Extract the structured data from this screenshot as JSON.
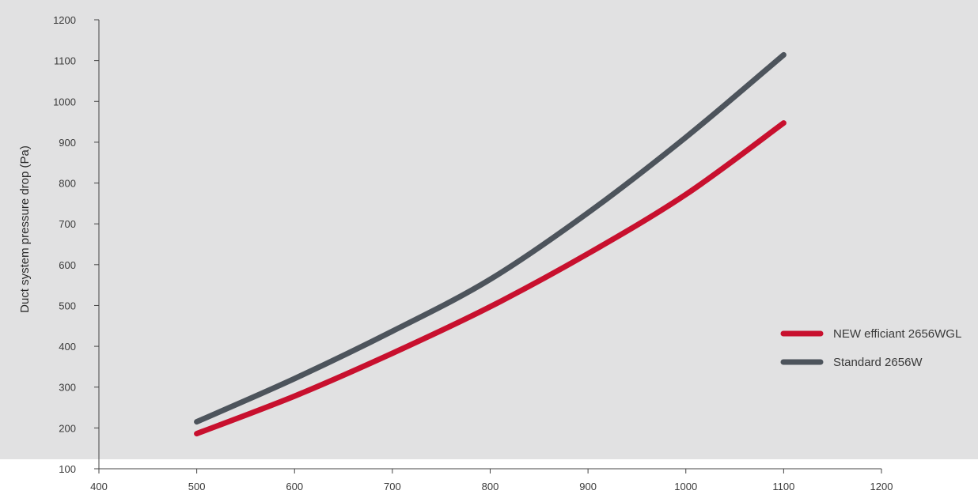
{
  "chart_data": {
    "type": "line",
    "title": "",
    "xlabel": "",
    "ylabel": "Duct system pressure drop (Pa)",
    "xlim": [
      400,
      1200
    ],
    "ylim": [
      100,
      1200
    ],
    "x_ticks": [
      400,
      500,
      600,
      700,
      800,
      900,
      1000,
      1100,
      1200
    ],
    "y_ticks": [
      100,
      200,
      300,
      400,
      500,
      600,
      700,
      800,
      900,
      1000,
      1100,
      1200
    ],
    "grid": false,
    "legend_position": "right",
    "series": [
      {
        "name": "NEW efficiant 2656WGL",
        "color": "#c8102e",
        "points": [
          [
            500,
            186
          ],
          [
            600,
            278
          ],
          [
            700,
            383
          ],
          [
            800,
            497
          ],
          [
            900,
            627
          ],
          [
            1000,
            772
          ],
          [
            1100,
            947
          ]
        ]
      },
      {
        "name": "Standard 2656W",
        "color": "#4d545c",
        "points": [
          [
            500,
            215
          ],
          [
            600,
            321
          ],
          [
            700,
            437
          ],
          [
            800,
            564
          ],
          [
            900,
            727
          ],
          [
            1000,
            912
          ],
          [
            1100,
            1114
          ]
        ]
      }
    ]
  }
}
